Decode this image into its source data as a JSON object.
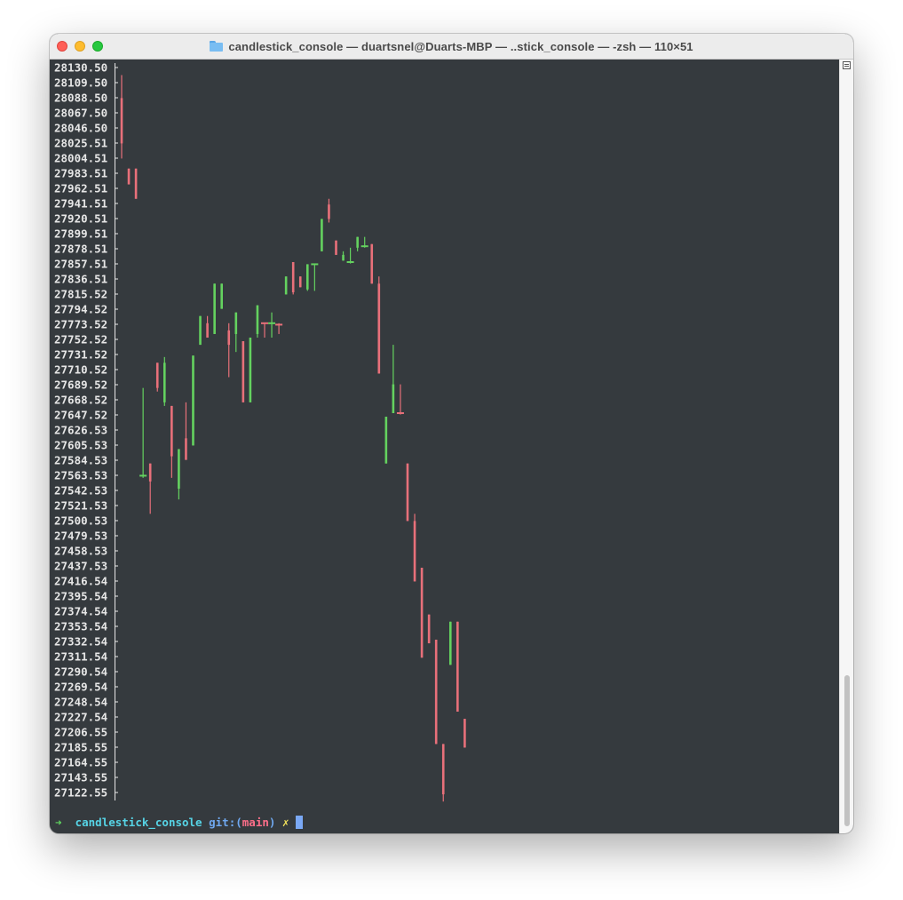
{
  "window": {
    "title": "candlestick_console — duartsnel@Duarts-MBP — ..stick_console — -zsh — 110×51",
    "folder_icon": "folder-icon"
  },
  "colors": {
    "background": "#353a3e",
    "axis_text": "#e6e6e6",
    "bullish": "#64d25f",
    "bearish": "#e8707a"
  },
  "prompt": {
    "arrow": "➜",
    "directory": "candlestick_console",
    "git_label": "git:",
    "open_paren": "(",
    "branch": "main",
    "close_paren": ")",
    "dirty_mark": "✗"
  },
  "chart_data": {
    "type": "candlestick",
    "y_tick_labels": [
      "28130.50",
      "28109.50",
      "28088.50",
      "28067.50",
      "28046.50",
      "28025.51",
      "28004.51",
      "27983.51",
      "27962.51",
      "27941.51",
      "27920.51",
      "27899.51",
      "27878.51",
      "27857.51",
      "27836.51",
      "27815.52",
      "27794.52",
      "27773.52",
      "27752.52",
      "27731.52",
      "27710.52",
      "27689.52",
      "27668.52",
      "27647.52",
      "27626.53",
      "27605.53",
      "27584.53",
      "27563.53",
      "27542.53",
      "27521.53",
      "27500.53",
      "27479.53",
      "27458.53",
      "27437.53",
      "27416.54",
      "27395.54",
      "27374.54",
      "27353.54",
      "27332.54",
      "27311.54",
      "27290.54",
      "27269.54",
      "27248.54",
      "27227.54",
      "27206.55",
      "27185.55",
      "27164.55",
      "27143.55",
      "27122.55"
    ],
    "ylim": [
      27122.55,
      28130.5
    ],
    "candles": [
      {
        "open": 28088,
        "close": 28025,
        "high": 28120,
        "low": 28004
      },
      {
        "open": 27990,
        "close": 27968,
        "high": 27990,
        "low": 27968
      },
      {
        "open": 27990,
        "close": 27948,
        "high": 27990,
        "low": 27948
      },
      {
        "open": 27560,
        "close": 27563,
        "high": 27685,
        "low": 27560
      },
      {
        "open": 27580,
        "close": 27555,
        "high": 27580,
        "low": 27510
      },
      {
        "open": 27720,
        "close": 27685,
        "high": 27720,
        "low": 27680
      },
      {
        "open": 27665,
        "close": 27720,
        "high": 27728,
        "low": 27660
      },
      {
        "open": 27660,
        "close": 27590,
        "high": 27660,
        "low": 27560
      },
      {
        "open": 27545,
        "close": 27600,
        "high": 27600,
        "low": 27530
      },
      {
        "open": 27615,
        "close": 27585,
        "high": 27665,
        "low": 27585
      },
      {
        "open": 27605,
        "close": 27730,
        "high": 27730,
        "low": 27605
      },
      {
        "open": 27745,
        "close": 27785,
        "high": 27785,
        "low": 27745
      },
      {
        "open": 27775,
        "close": 27755,
        "high": 27785,
        "low": 27755
      },
      {
        "open": 27760,
        "close": 27830,
        "high": 27830,
        "low": 27760
      },
      {
        "open": 27795,
        "close": 27830,
        "high": 27830,
        "low": 27795
      },
      {
        "open": 27765,
        "close": 27745,
        "high": 27775,
        "low": 27700
      },
      {
        "open": 27760,
        "close": 27790,
        "high": 27790,
        "low": 27735
      },
      {
        "open": 27750,
        "close": 27665,
        "high": 27750,
        "low": 27665
      },
      {
        "open": 27665,
        "close": 27755,
        "high": 27755,
        "low": 27665
      },
      {
        "open": 27760,
        "close": 27800,
        "high": 27800,
        "low": 27755
      },
      {
        "open": 27775,
        "close": 27773,
        "high": 27775,
        "low": 27755
      },
      {
        "open": 27773,
        "close": 27775,
        "high": 27790,
        "low": 27755
      },
      {
        "open": 27773,
        "close": 27770,
        "high": 27775,
        "low": 27760
      },
      {
        "open": 27815,
        "close": 27840,
        "high": 27840,
        "low": 27815
      },
      {
        "open": 27860,
        "close": 27818,
        "high": 27860,
        "low": 27815
      },
      {
        "open": 27840,
        "close": 27825,
        "high": 27840,
        "low": 27825
      },
      {
        "open": 27822,
        "close": 27857,
        "high": 27857,
        "low": 27820
      },
      {
        "open": 27857,
        "close": 27857,
        "high": 27857,
        "low": 27820
      },
      {
        "open": 27875,
        "close": 27920,
        "high": 27920,
        "low": 27875
      },
      {
        "open": 27940,
        "close": 27920,
        "high": 27948,
        "low": 27915
      },
      {
        "open": 27890,
        "close": 27870,
        "high": 27890,
        "low": 27870
      },
      {
        "open": 27862,
        "close": 27870,
        "high": 27875,
        "low": 27862
      },
      {
        "open": 27860,
        "close": 27860,
        "high": 27880,
        "low": 27858
      },
      {
        "open": 27880,
        "close": 27895,
        "high": 27895,
        "low": 27875
      },
      {
        "open": 27880,
        "close": 27882,
        "high": 27895,
        "low": 27880
      },
      {
        "open": 27885,
        "close": 27830,
        "high": 27885,
        "low": 27830
      },
      {
        "open": 27830,
        "close": 27705,
        "high": 27840,
        "low": 27705
      },
      {
        "open": 27580,
        "close": 27645,
        "high": 27645,
        "low": 27580
      },
      {
        "open": 27650,
        "close": 27690,
        "high": 27745,
        "low": 27650
      },
      {
        "open": 27650,
        "close": 27648,
        "high": 27690,
        "low": 27648
      },
      {
        "open": 27580,
        "close": 27500,
        "high": 27580,
        "low": 27500
      },
      {
        "open": 27500,
        "close": 27416,
        "high": 27510,
        "low": 27416
      },
      {
        "open": 27435,
        "close": 27310,
        "high": 27435,
        "low": 27310
      },
      {
        "open": 27370,
        "close": 27330,
        "high": 27370,
        "low": 27330
      },
      {
        "open": 27335,
        "close": 27190,
        "high": 27335,
        "low": 27190
      },
      {
        "open": 27190,
        "close": 27120,
        "high": 27190,
        "low": 27110
      },
      {
        "open": 27300,
        "close": 27360,
        "high": 27360,
        "low": 27300
      },
      {
        "open": 27360,
        "close": 27235,
        "high": 27360,
        "low": 27235
      },
      {
        "open": 27225,
        "close": 27185,
        "high": 27225,
        "low": 27185
      }
    ]
  }
}
